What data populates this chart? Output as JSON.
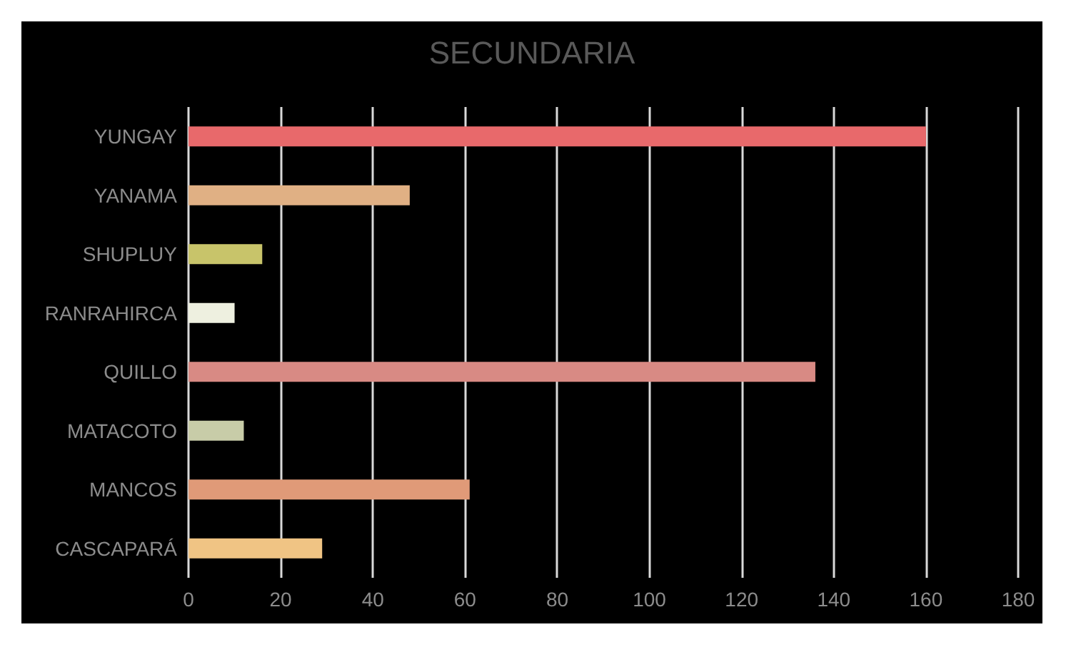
{
  "chart_data": {
    "type": "bar",
    "orientation": "horizontal",
    "title": "SECUNDARIA",
    "categories": [
      "YUNGAY",
      "YANAMA",
      "SHUPLUY",
      "RANRAHIRCA",
      "QUILLO",
      "MATACOTO",
      "MANCOS",
      "CASCAPARÁ"
    ],
    "values": [
      160,
      48,
      16,
      10,
      136,
      12,
      61,
      29
    ],
    "colors": [
      "#e8696b",
      "#e0b084",
      "#c8c46a",
      "#eef0e0",
      "#d88a84",
      "#c8cca8",
      "#e09a78",
      "#f0c484"
    ],
    "xlim": [
      0,
      180
    ],
    "xticks": [
      0,
      20,
      40,
      60,
      80,
      100,
      120,
      140,
      160,
      180
    ],
    "grid": "x"
  }
}
